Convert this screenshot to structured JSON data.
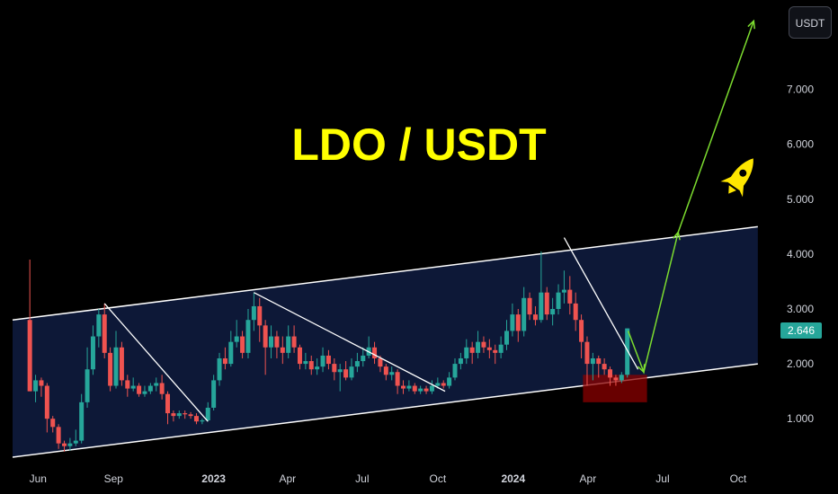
{
  "currency_button": "USDT",
  "current_price": "2.646",
  "colors": {
    "background": "#000000",
    "up": "#26a69a",
    "down": "#ef5350",
    "channel_fill": "#0e1b3d",
    "annotation": "#7cdc2f",
    "title": "#ffff00",
    "support_zone": "#8b0000",
    "current_price_tag": "#26a69a"
  },
  "chart_data": {
    "type": "candlestick",
    "title": "LDO / USDT",
    "x_tick_labels": [
      "Jun",
      "Sep",
      "2023",
      "Apr",
      "Jul",
      "Oct",
      "2024",
      "Apr",
      "Jul",
      "Oct"
    ],
    "bold_x_tick_labels": [
      "2023",
      "2024"
    ],
    "y_tick_labels": [
      "1.000",
      "2.000",
      "3.000",
      "4.000",
      "5.000",
      "6.000",
      "7.000"
    ],
    "y_range": [
      0.25,
      8.5
    ],
    "x_range": [
      "2022-05-01",
      "2024-11-15"
    ],
    "grid": false,
    "last_price": 2.646,
    "candles": [
      [
        "2022-05-22",
        2.8,
        1.5,
        3.9,
        1.5
      ],
      [
        "2022-05-29",
        1.5,
        1.7,
        1.8,
        1.3
      ],
      [
        "2022-06-05",
        1.7,
        1.6,
        1.75,
        1.4
      ],
      [
        "2022-06-12",
        1.6,
        1.0,
        1.65,
        0.75
      ],
      [
        "2022-06-19",
        1.0,
        0.85,
        1.05,
        0.75
      ],
      [
        "2022-06-26",
        0.85,
        0.55,
        0.9,
        0.45
      ],
      [
        "2022-07-03",
        0.55,
        0.5,
        0.6,
        0.4
      ],
      [
        "2022-07-10",
        0.5,
        0.55,
        0.65,
        0.42
      ],
      [
        "2022-07-17",
        0.55,
        0.6,
        0.8,
        0.5
      ],
      [
        "2022-07-24",
        0.6,
        1.3,
        1.45,
        0.55
      ],
      [
        "2022-07-31",
        1.3,
        1.9,
        2.3,
        1.2
      ],
      [
        "2022-08-07",
        1.9,
        2.5,
        2.7,
        1.8
      ],
      [
        "2022-08-14",
        2.5,
        2.9,
        3.0,
        2.3
      ],
      [
        "2022-08-21",
        2.9,
        2.2,
        3.1,
        2.1
      ],
      [
        "2022-08-28",
        2.2,
        1.6,
        2.3,
        1.5
      ],
      [
        "2022-09-04",
        1.6,
        2.3,
        2.6,
        1.55
      ],
      [
        "2022-09-11",
        2.3,
        1.7,
        2.4,
        1.6
      ],
      [
        "2022-09-18",
        1.7,
        1.55,
        1.8,
        1.4
      ],
      [
        "2022-09-25",
        1.55,
        1.6,
        1.75,
        1.5
      ],
      [
        "2022-10-02",
        1.6,
        1.45,
        1.65,
        1.4
      ],
      [
        "2022-10-09",
        1.45,
        1.5,
        1.6,
        1.4
      ],
      [
        "2022-10-16",
        1.5,
        1.6,
        1.65,
        1.45
      ],
      [
        "2022-10-23",
        1.6,
        1.65,
        1.75,
        1.5
      ],
      [
        "2022-10-30",
        1.65,
        1.45,
        1.8,
        1.35
      ],
      [
        "2022-11-06",
        1.45,
        1.1,
        1.5,
        0.9
      ],
      [
        "2022-11-13",
        1.1,
        1.05,
        1.15,
        0.95
      ],
      [
        "2022-11-20",
        1.05,
        1.1,
        1.15,
        1.0
      ],
      [
        "2022-11-27",
        1.1,
        1.08,
        1.15,
        1.0
      ],
      [
        "2022-12-04",
        1.08,
        1.05,
        1.12,
        1.0
      ],
      [
        "2022-12-11",
        1.05,
        0.95,
        1.1,
        0.9
      ],
      [
        "2022-12-18",
        0.95,
        0.97,
        1.0,
        0.9
      ],
      [
        "2022-12-25",
        0.97,
        1.2,
        1.3,
        0.95
      ],
      [
        "2023-01-01",
        1.2,
        1.7,
        1.8,
        1.15
      ],
      [
        "2023-01-08",
        1.7,
        2.1,
        2.2,
        1.6
      ],
      [
        "2023-01-15",
        2.1,
        2.0,
        2.3,
        1.9
      ],
      [
        "2023-01-22",
        2.0,
        2.4,
        2.6,
        1.95
      ],
      [
        "2023-01-29",
        2.4,
        2.5,
        2.8,
        2.3
      ],
      [
        "2023-02-05",
        2.5,
        2.2,
        2.6,
        2.1
      ],
      [
        "2023-02-12",
        2.2,
        2.8,
        3.0,
        2.1
      ],
      [
        "2023-02-19",
        2.8,
        3.05,
        3.3,
        2.6
      ],
      [
        "2023-02-26",
        3.05,
        2.7,
        3.2,
        2.4
      ],
      [
        "2023-03-05",
        2.7,
        2.3,
        2.8,
        1.8
      ],
      [
        "2023-03-12",
        2.3,
        2.5,
        2.7,
        2.1
      ],
      [
        "2023-03-19",
        2.5,
        2.3,
        2.6,
        2.1
      ],
      [
        "2023-03-26",
        2.3,
        2.2,
        2.5,
        2.0
      ],
      [
        "2023-04-02",
        2.2,
        2.5,
        2.7,
        2.1
      ],
      [
        "2023-04-09",
        2.5,
        2.3,
        2.7,
        2.2
      ],
      [
        "2023-04-16",
        2.3,
        2.0,
        2.35,
        1.9
      ],
      [
        "2023-04-23",
        2.0,
        2.05,
        2.2,
        1.9
      ],
      [
        "2023-04-30",
        2.05,
        1.9,
        2.15,
        1.8
      ],
      [
        "2023-05-07",
        1.9,
        1.95,
        2.1,
        1.8
      ],
      [
        "2023-05-14",
        1.95,
        2.15,
        2.3,
        1.85
      ],
      [
        "2023-05-21",
        2.15,
        2.0,
        2.25,
        1.9
      ],
      [
        "2023-05-28",
        2.0,
        1.85,
        2.1,
        1.7
      ],
      [
        "2023-06-04",
        1.85,
        1.9,
        2.0,
        1.5
      ],
      [
        "2023-06-11",
        1.9,
        1.75,
        2.05,
        1.7
      ],
      [
        "2023-06-18",
        1.75,
        1.95,
        2.1,
        1.7
      ],
      [
        "2023-06-25",
        1.95,
        2.05,
        2.2,
        1.85
      ],
      [
        "2023-07-02",
        2.05,
        2.15,
        2.3,
        1.95
      ],
      [
        "2023-07-09",
        2.15,
        2.3,
        2.5,
        2.1
      ],
      [
        "2023-07-16",
        2.3,
        2.1,
        2.4,
        2.0
      ],
      [
        "2023-07-23",
        2.1,
        1.95,
        2.15,
        1.85
      ],
      [
        "2023-07-30",
        1.95,
        1.8,
        2.0,
        1.7
      ],
      [
        "2023-08-06",
        1.8,
        1.85,
        1.95,
        1.7
      ],
      [
        "2023-08-13",
        1.85,
        1.6,
        1.9,
        1.45
      ],
      [
        "2023-08-20",
        1.6,
        1.55,
        1.7,
        1.45
      ],
      [
        "2023-08-27",
        1.55,
        1.6,
        1.7,
        1.5
      ],
      [
        "2023-09-03",
        1.6,
        1.5,
        1.65,
        1.45
      ],
      [
        "2023-09-10",
        1.5,
        1.55,
        1.6,
        1.45
      ],
      [
        "2023-09-17",
        1.55,
        1.5,
        1.6,
        1.45
      ],
      [
        "2023-09-24",
        1.5,
        1.6,
        1.7,
        1.45
      ],
      [
        "2023-10-01",
        1.6,
        1.65,
        1.75,
        1.55
      ],
      [
        "2023-10-08",
        1.65,
        1.6,
        1.7,
        1.55
      ],
      [
        "2023-10-15",
        1.6,
        1.75,
        1.85,
        1.55
      ],
      [
        "2023-10-22",
        1.75,
        2.0,
        2.1,
        1.7
      ],
      [
        "2023-10-29",
        2.0,
        2.1,
        2.2,
        1.9
      ],
      [
        "2023-11-05",
        2.1,
        2.3,
        2.45,
        2.0
      ],
      [
        "2023-11-12",
        2.3,
        2.2,
        2.4,
        2.0
      ],
      [
        "2023-11-19",
        2.2,
        2.4,
        2.6,
        2.1
      ],
      [
        "2023-11-26",
        2.4,
        2.3,
        2.5,
        2.2
      ],
      [
        "2023-12-03",
        2.3,
        2.25,
        2.45,
        2.1
      ],
      [
        "2023-12-10",
        2.25,
        2.2,
        2.35,
        2.0
      ],
      [
        "2023-12-17",
        2.2,
        2.35,
        2.5,
        2.1
      ],
      [
        "2023-12-24",
        2.35,
        2.6,
        2.8,
        2.25
      ],
      [
        "2023-12-31",
        2.6,
        2.9,
        3.1,
        2.5
      ],
      [
        "2024-01-07",
        2.9,
        2.6,
        3.0,
        2.4
      ],
      [
        "2024-01-14",
        2.6,
        3.2,
        3.4,
        2.5
      ],
      [
        "2024-01-21",
        3.2,
        2.9,
        3.3,
        2.8
      ],
      [
        "2024-01-28",
        2.9,
        2.8,
        3.05,
        2.7
      ],
      [
        "2024-02-04",
        2.8,
        3.3,
        4.05,
        2.75
      ],
      [
        "2024-02-11",
        3.3,
        2.9,
        3.4,
        2.8
      ],
      [
        "2024-02-18",
        2.9,
        3.0,
        3.2,
        2.7
      ],
      [
        "2024-02-25",
        3.0,
        3.3,
        3.45,
        2.9
      ],
      [
        "2024-03-03",
        3.3,
        3.35,
        3.7,
        3.1
      ],
      [
        "2024-03-10",
        3.35,
        3.1,
        3.6,
        2.9
      ],
      [
        "2024-03-17",
        3.1,
        2.8,
        3.3,
        2.6
      ],
      [
        "2024-03-24",
        2.8,
        2.4,
        2.9,
        2.1
      ],
      [
        "2024-03-31",
        2.4,
        2.0,
        2.5,
        1.6
      ],
      [
        "2024-04-07",
        2.0,
        2.1,
        2.2,
        1.7
      ],
      [
        "2024-04-14",
        2.1,
        2.0,
        2.15,
        1.75
      ],
      [
        "2024-04-21",
        2.0,
        1.9,
        2.1,
        1.8
      ],
      [
        "2024-04-28",
        1.9,
        1.75,
        1.95,
        1.6
      ],
      [
        "2024-05-05",
        1.75,
        1.7,
        1.8,
        1.6
      ],
      [
        "2024-05-12",
        1.7,
        1.8,
        1.85,
        1.65
      ],
      [
        "2024-05-19",
        1.8,
        2.646,
        2.646,
        1.75
      ]
    ],
    "annotations": {
      "channel_upper": [
        [
          "2022-05-01",
          2.8
        ],
        [
          "2024-10-25",
          4.5
        ]
      ],
      "channel_lower": [
        [
          "2022-05-01",
          0.3
        ],
        [
          "2024-10-25",
          2.0
        ]
      ],
      "diagonals": [
        [
          [
            "2022-08-21",
            3.1
          ],
          [
            "2022-12-25",
            0.95
          ]
        ],
        [
          [
            "2023-02-19",
            3.3
          ],
          [
            "2023-10-10",
            1.5
          ]
        ],
        [
          [
            "2024-03-03",
            4.3
          ],
          [
            "2024-06-01",
            1.9
          ]
        ]
      ],
      "support_zone": {
        "x": [
          "2024-03-26",
          "2024-06-12"
        ],
        "y": [
          1.3,
          1.8
        ]
      },
      "green_projection": [
        [
          "2024-05-20",
          2.6
        ],
        [
          "2024-06-08",
          1.85
        ],
        [
          "2024-07-20",
          4.4
        ],
        [
          "2024-10-20",
          8.25
        ]
      ],
      "green_chevrons": [
        [
          "2024-06-08",
          1.85
        ],
        [
          "2024-07-20",
          4.4
        ],
        [
          "2024-10-20",
          8.25
        ]
      ]
    }
  }
}
